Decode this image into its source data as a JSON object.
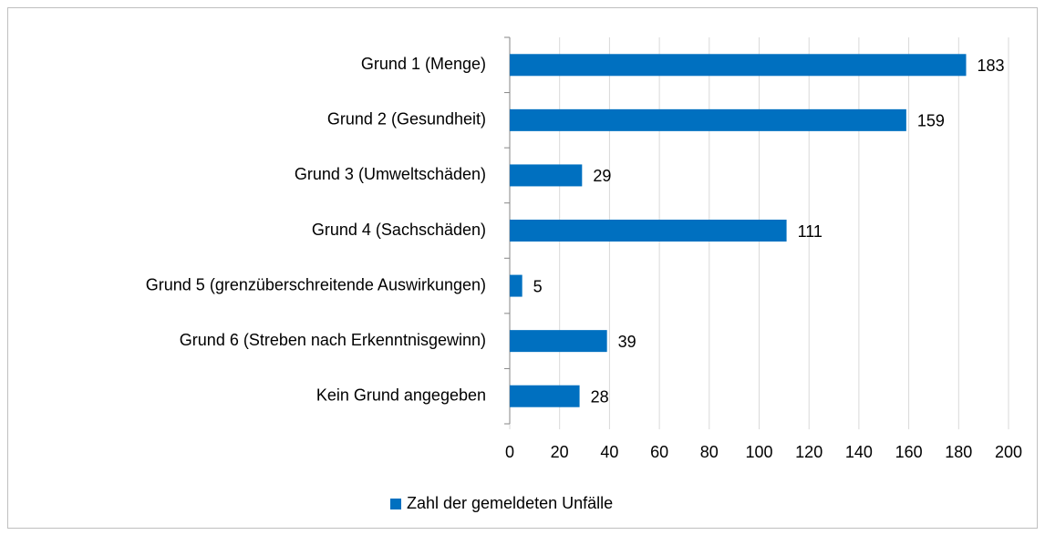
{
  "chart_data": {
    "type": "bar",
    "orientation": "horizontal",
    "categories": [
      "Grund 1 (Menge)",
      "Grund 2 (Gesundheit)",
      "Grund 3 (Umweltschäden)",
      "Grund 4 (Sachschäden)",
      "Grund 5 (grenzüberschreitende Auswirkungen)",
      "Grund 6 (Streben nach Erkenntnisgewinn)",
      "Kein Grund angegeben"
    ],
    "series": [
      {
        "name": "Zahl der gemeldeten Unfälle",
        "color": "#0070c0",
        "values": [
          183,
          159,
          29,
          111,
          5,
          39,
          28
        ]
      }
    ],
    "xlim": [
      0,
      200
    ],
    "xticks": [
      0,
      20,
      40,
      60,
      80,
      100,
      120,
      140,
      160,
      180,
      200
    ],
    "grid": true,
    "legend": "bottom"
  }
}
